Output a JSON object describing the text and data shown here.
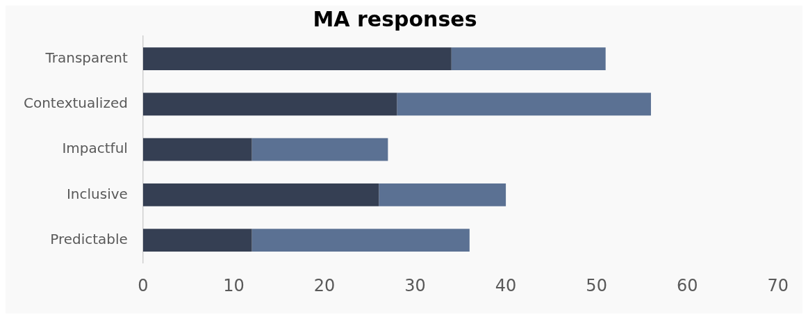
{
  "chart_data": {
    "type": "bar",
    "title": "MA responses",
    "orientation": "horizontal",
    "stacked": true,
    "categories": [
      "Transparent",
      "Contextualized",
      "Impactful",
      "Inclusive",
      "Predictable"
    ],
    "series": [
      {
        "color": "#353f53",
        "values": [
          34,
          28,
          12,
          26,
          12
        ]
      },
      {
        "color": "#5b7193",
        "values": [
          17,
          28,
          15,
          14,
          24
        ]
      }
    ],
    "xlim": [
      0,
      70
    ],
    "xticks": [
      0,
      10,
      20,
      30,
      40,
      50,
      60,
      70
    ],
    "grid": false
  }
}
